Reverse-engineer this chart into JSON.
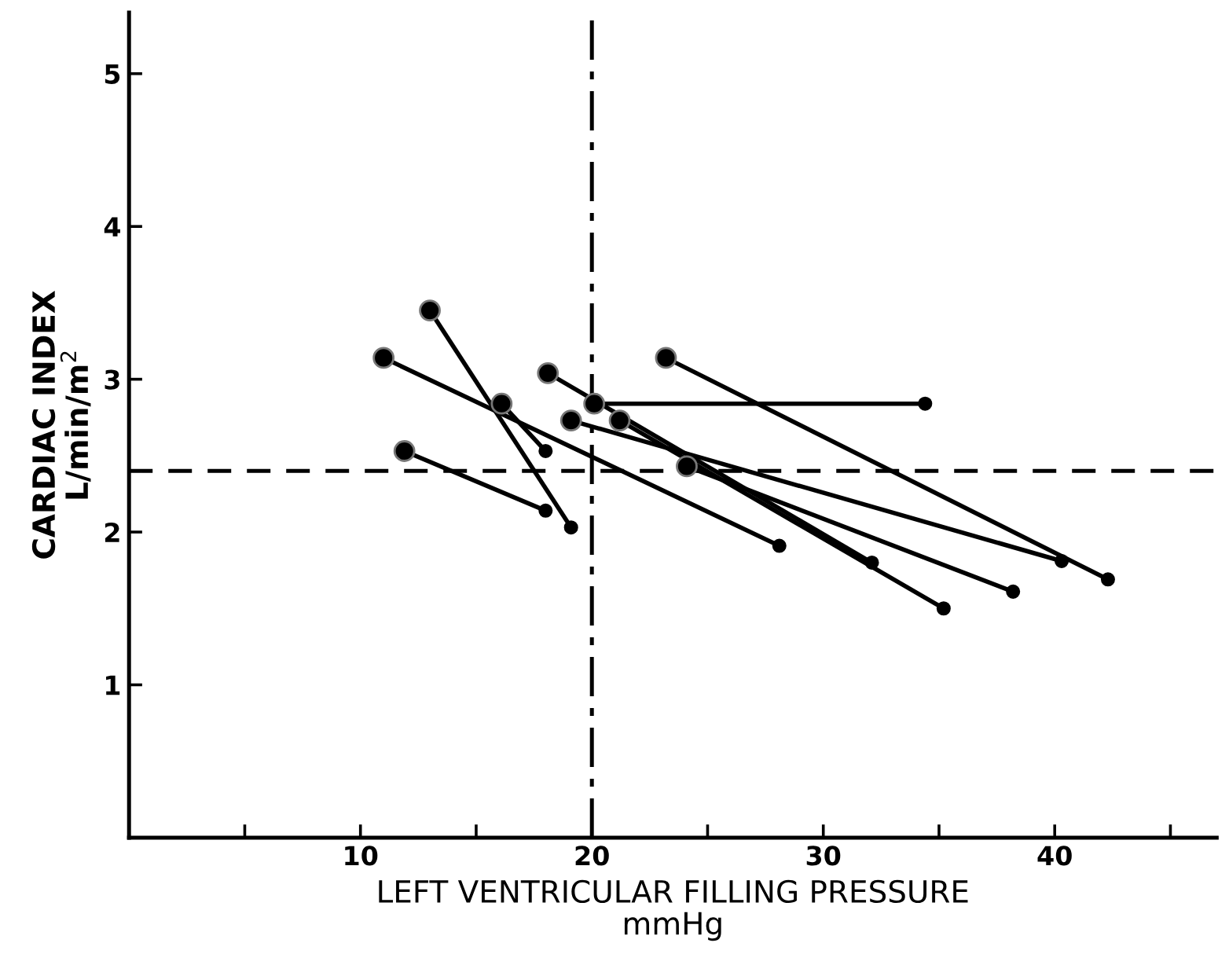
{
  "chart_data": {
    "type": "line",
    "xlabel": "LEFT VENTRICULAR FILLING PRESSURE\nmmHg",
    "ylabel": "CARDIAC INDEX\nL/min/m$^{2}$",
    "series": [
      {
        "x": [
          11.0,
          28.1
        ],
        "values": [
          3.14,
          1.91
        ],
        "color": "#000000"
      },
      {
        "x": [
          13.0,
          19.1
        ],
        "values": [
          3.45,
          2.03
        ],
        "color": "#000000"
      },
      {
        "x": [
          11.9,
          18.0
        ],
        "values": [
          2.53,
          2.14
        ],
        "color": "#000000"
      },
      {
        "x": [
          16.1,
          18.0
        ],
        "values": [
          2.84,
          2.53
        ],
        "color": "#000000"
      },
      {
        "x": [
          18.1,
          32.1
        ],
        "values": [
          3.04,
          1.8
        ],
        "color": "#000000"
      },
      {
        "x": [
          20.1,
          34.4
        ],
        "values": [
          2.84,
          2.84
        ],
        "color": "#000000"
      },
      {
        "x": [
          19.1,
          40.3
        ],
        "values": [
          2.73,
          1.81
        ],
        "color": "#000000"
      },
      {
        "x": [
          21.2,
          35.2
        ],
        "values": [
          2.73,
          1.5
        ],
        "color": "#000000"
      },
      {
        "x": [
          23.2,
          42.3
        ],
        "values": [
          3.14,
          1.69
        ],
        "color": "#000000"
      },
      {
        "x": [
          24.1,
          38.2
        ],
        "values": [
          2.43,
          1.61
        ],
        "color": "#000000"
      }
    ],
    "marker": "circle",
    "line_style": "solid",
    "xlim": [
      0,
      47
    ],
    "ylim": [
      0,
      5.4
    ],
    "xticks": [
      {
        "value": 5,
        "label": null
      },
      10,
      {
        "value": 15,
        "label": null
      },
      20,
      {
        "value": 25,
        "label": null
      },
      30,
      {
        "value": 35,
        "label": null
      },
      40,
      {
        "value": 45,
        "label": null
      }
    ],
    "yticks": [
      1,
      2,
      3,
      4,
      5
    ],
    "ref_lines": [
      {
        "axis": "y",
        "value": 2.4,
        "line_style": "dashed",
        "color": "#000000"
      },
      {
        "axis": "x",
        "value": 20,
        "line_style": "dashdot",
        "color": "#000000"
      }
    ],
    "grid": false,
    "legend": false
  }
}
